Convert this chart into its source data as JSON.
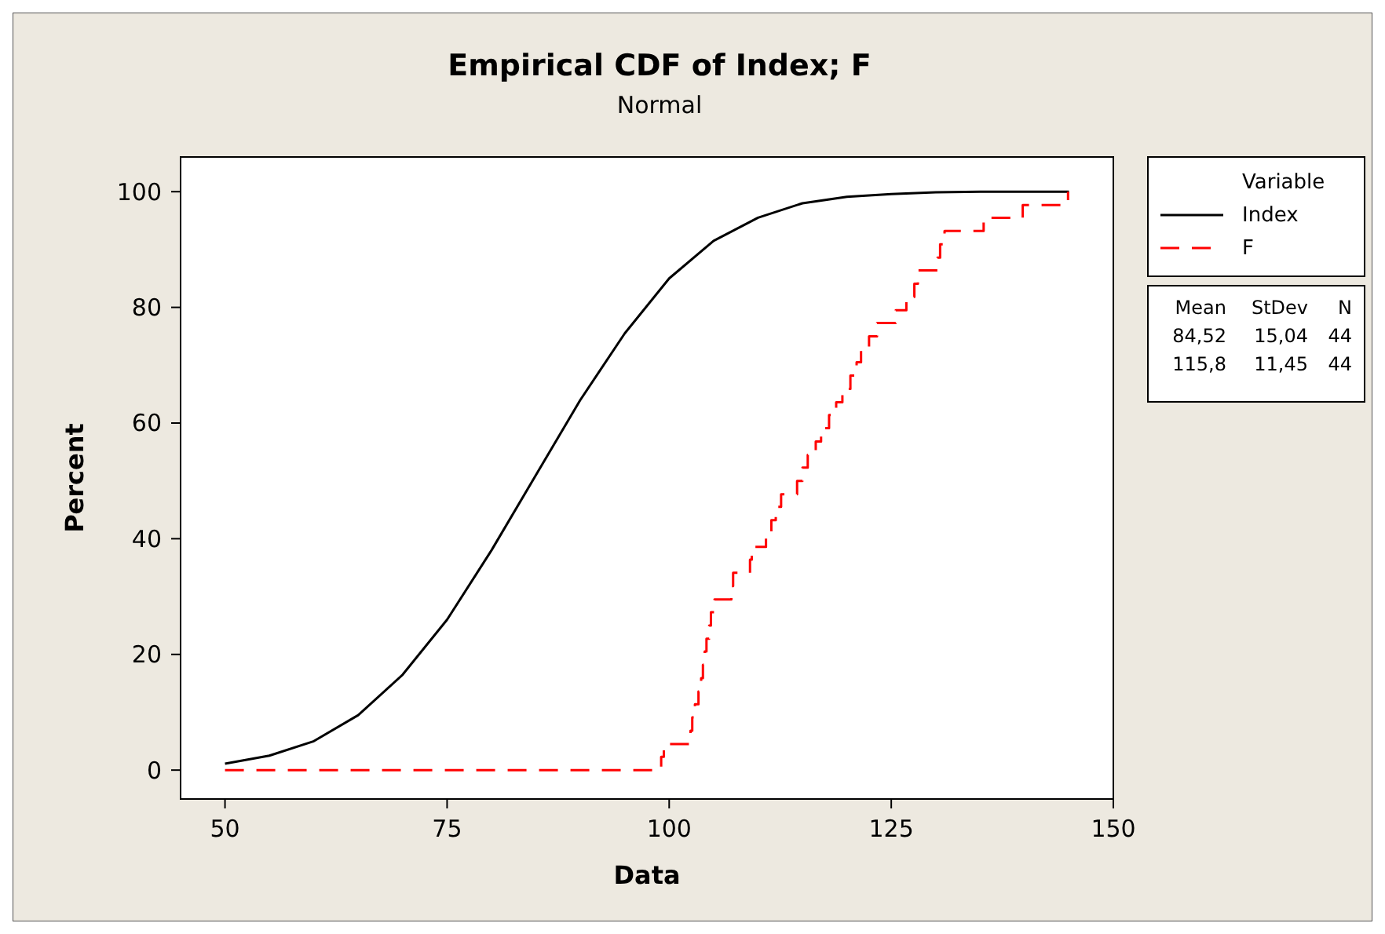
{
  "chart_data": {
    "type": "line",
    "title": "Empirical CDF of Index; F",
    "subtitle": "Normal",
    "xlabel": "Data",
    "ylabel": "Percent",
    "legend_title": "Variable",
    "legend": "right",
    "xlim": [
      45,
      150
    ],
    "xticks": [
      50,
      75,
      100,
      125,
      150
    ],
    "ylim": [
      -5,
      106
    ],
    "yticks": [
      0,
      20,
      40,
      60,
      80,
      100
    ],
    "series": [
      {
        "name": "Index",
        "color": "#000000",
        "line_style": "solid",
        "x": [
          50,
          55,
          60,
          65,
          70,
          75,
          80,
          85,
          90,
          95,
          100,
          105,
          110,
          115,
          120,
          125,
          130,
          135,
          145
        ],
        "values": [
          1.1,
          2.5,
          5,
          9.5,
          16.5,
          26,
          38,
          51,
          64,
          75.5,
          85,
          91.5,
          95.5,
          98,
          99.1,
          99.6,
          99.9,
          100,
          100
        ]
      },
      {
        "name": "F",
        "type": "step",
        "color": "#ff0000",
        "line_style": "dashed",
        "x": [
          50,
          99.1,
          99.4,
          102.4,
          102.6,
          102.9,
          103.3,
          103.6,
          103.8,
          104.0,
          104.2,
          104.5,
          104.7,
          105.1,
          107.0,
          107.2,
          109.1,
          109.3,
          110.9,
          111.5,
          112.0,
          112.6,
          114.4,
          115.0,
          115.6,
          116.5,
          117.1,
          118.0,
          118.8,
          119.5,
          120.4,
          121.1,
          121.6,
          122.5,
          123.4,
          125.5,
          126.7,
          127.6,
          128.0,
          130.2,
          130.5,
          131.0,
          135.4,
          139.8,
          144.9
        ],
        "values": [
          0,
          2.3,
          4.5,
          6.8,
          9.1,
          11.4,
          13.6,
          15.9,
          18.2,
          20.5,
          22.7,
          25,
          27.3,
          29.5,
          31.8,
          34.1,
          36.4,
          38.6,
          40.9,
          43.2,
          45.5,
          47.7,
          50,
          52.3,
          54.5,
          56.8,
          59.1,
          61.4,
          63.6,
          65.9,
          68.2,
          70.5,
          72.7,
          75,
          77.3,
          79.5,
          81.8,
          84.1,
          86.4,
          88.6,
          90.9,
          93.2,
          95.5,
          97.7,
          100
        ]
      }
    ],
    "annotations": [
      "Mean",
      "StDev",
      "N",
      "84,52",
      "15,04",
      "44",
      "115,8",
      "11,45",
      "44"
    ]
  }
}
